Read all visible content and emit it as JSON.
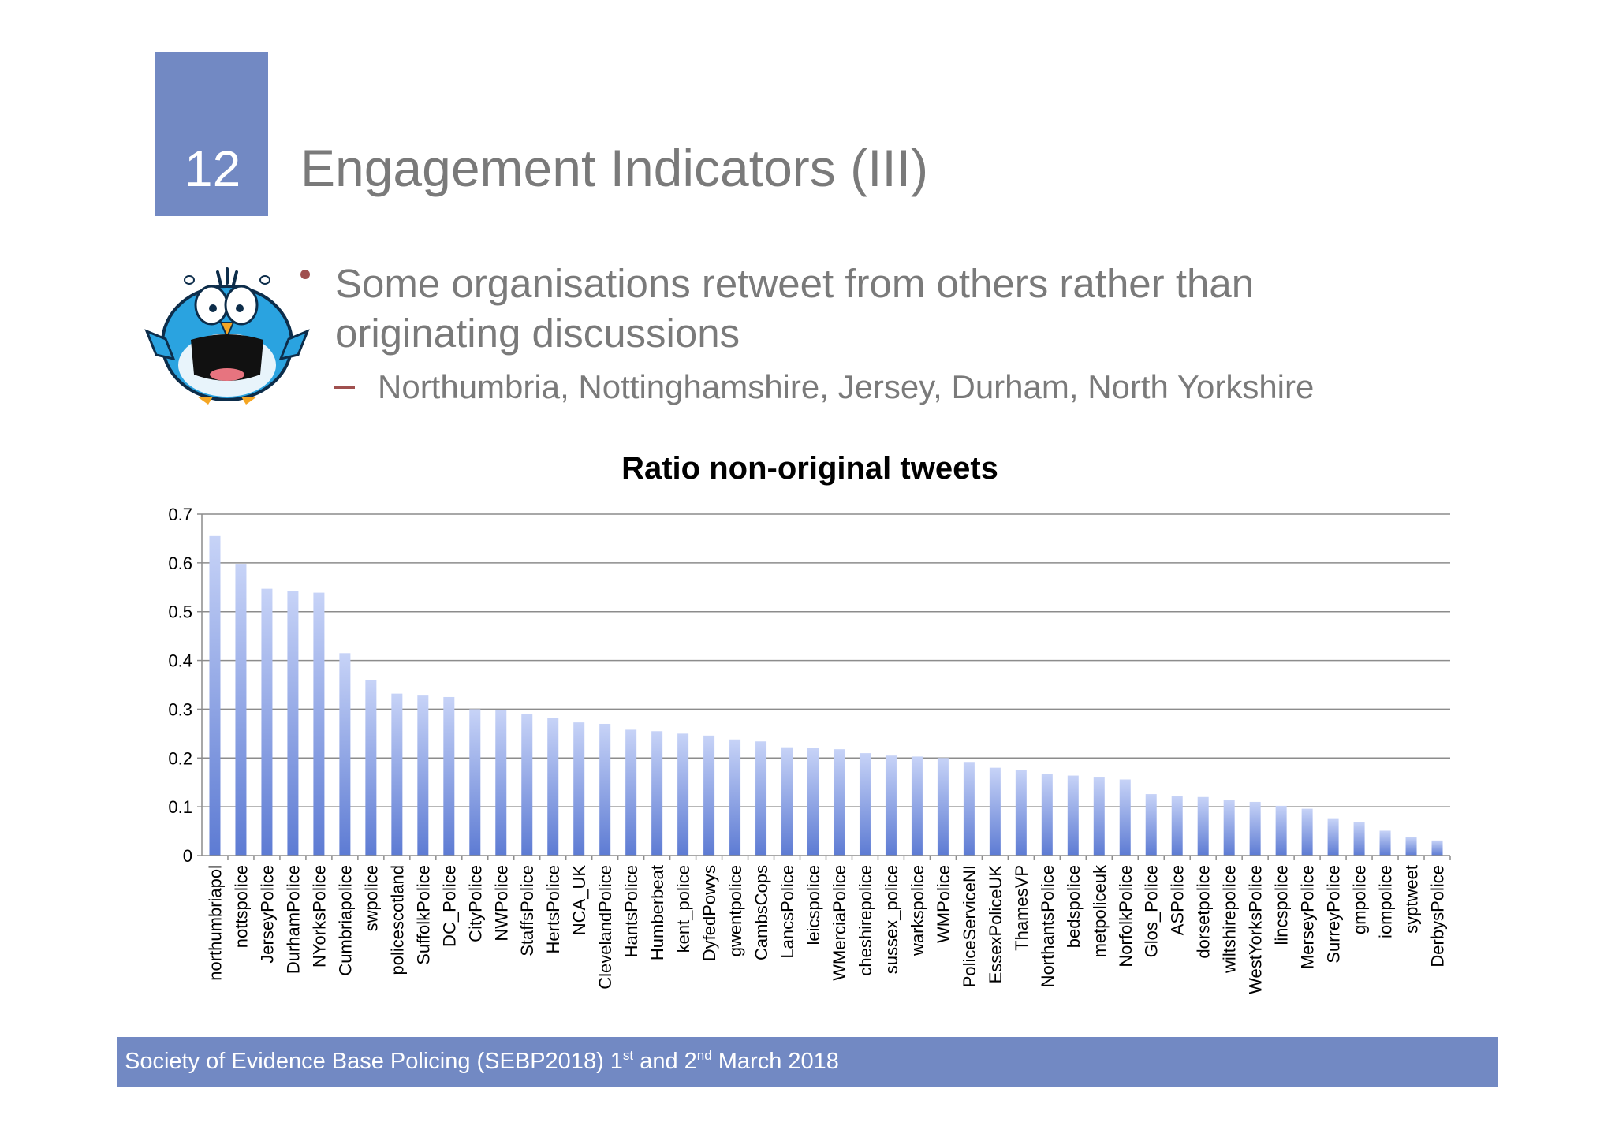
{
  "slide": {
    "number": "12",
    "title": "Engagement Indicators (III)",
    "bullet": "Some organisations retweet from others rather than originating discussions",
    "sub_bullet": "Northumbria, Nottinghamshire, Jersey, Durham, North Yorkshire",
    "accent_color": "#7289c3",
    "bullet_color": "#a0504f"
  },
  "footer": {
    "text_before": "Society of Evidence Base Policing (SEBP2018) 1",
    "sup1": "st",
    "text_middle": " and 2",
    "sup2": "nd",
    "text_after": " March 2018"
  },
  "mascot": {
    "icon": "scared-bird-icon"
  },
  "chart_data": {
    "type": "bar",
    "title": "Ratio non-original tweets",
    "xlabel": "",
    "ylabel": "",
    "ylim": [
      0,
      0.7
    ],
    "yticks": [
      0,
      0.1,
      0.2,
      0.3,
      0.4,
      0.5,
      0.6,
      0.7
    ],
    "grid": true,
    "legend": "none",
    "bar_color_top": "#c7d3f7",
    "bar_color_bottom": "#5d7bd3",
    "categories": [
      "northumbriapol",
      "nottspolice",
      "JerseyPolice",
      "DurhamPolice",
      "NYorksPolice",
      "Cumbriapolice",
      "swpolice",
      "policescotland",
      "SuffolkPolice",
      "DC_Police",
      "CityPolice",
      "NWPolice",
      "StaffsPolice",
      "HertsPolice",
      "NCA_UK",
      "ClevelandPolice",
      "HantsPolice",
      "Humberbeat",
      "kent_police",
      "DyfedPowys",
      "gwentpolice",
      "CambsCops",
      "LancsPolice",
      "leicspolice",
      "WMerciaPolice",
      "cheshirepolice",
      "sussex_police",
      "warkspolice",
      "WMPolice",
      "PoliceServiceNI",
      "EssexPoliceUK",
      "ThamesVP",
      "NorthantsPolice",
      "bedspolice",
      "metpoliceuk",
      "NorfolkPolice",
      "Glos_Police",
      "ASPolice",
      "dorsetpolice",
      "wiltshirepolice",
      "WestYorksPolice",
      "lincspolice",
      "MerseyPolice",
      "SurreyPolice",
      "gmpolice",
      "iompolice",
      "syptweet",
      "DerbysPolice"
    ],
    "values": [
      0.655,
      0.598,
      0.547,
      0.542,
      0.539,
      0.415,
      0.36,
      0.332,
      0.328,
      0.325,
      0.3,
      0.298,
      0.29,
      0.282,
      0.273,
      0.27,
      0.258,
      0.255,
      0.25,
      0.246,
      0.238,
      0.234,
      0.222,
      0.22,
      0.218,
      0.21,
      0.205,
      0.203,
      0.2,
      0.192,
      0.18,
      0.175,
      0.168,
      0.164,
      0.16,
      0.156,
      0.126,
      0.122,
      0.12,
      0.114,
      0.11,
      0.102,
      0.096,
      0.075,
      0.068,
      0.051,
      0.038,
      0.031
    ]
  }
}
